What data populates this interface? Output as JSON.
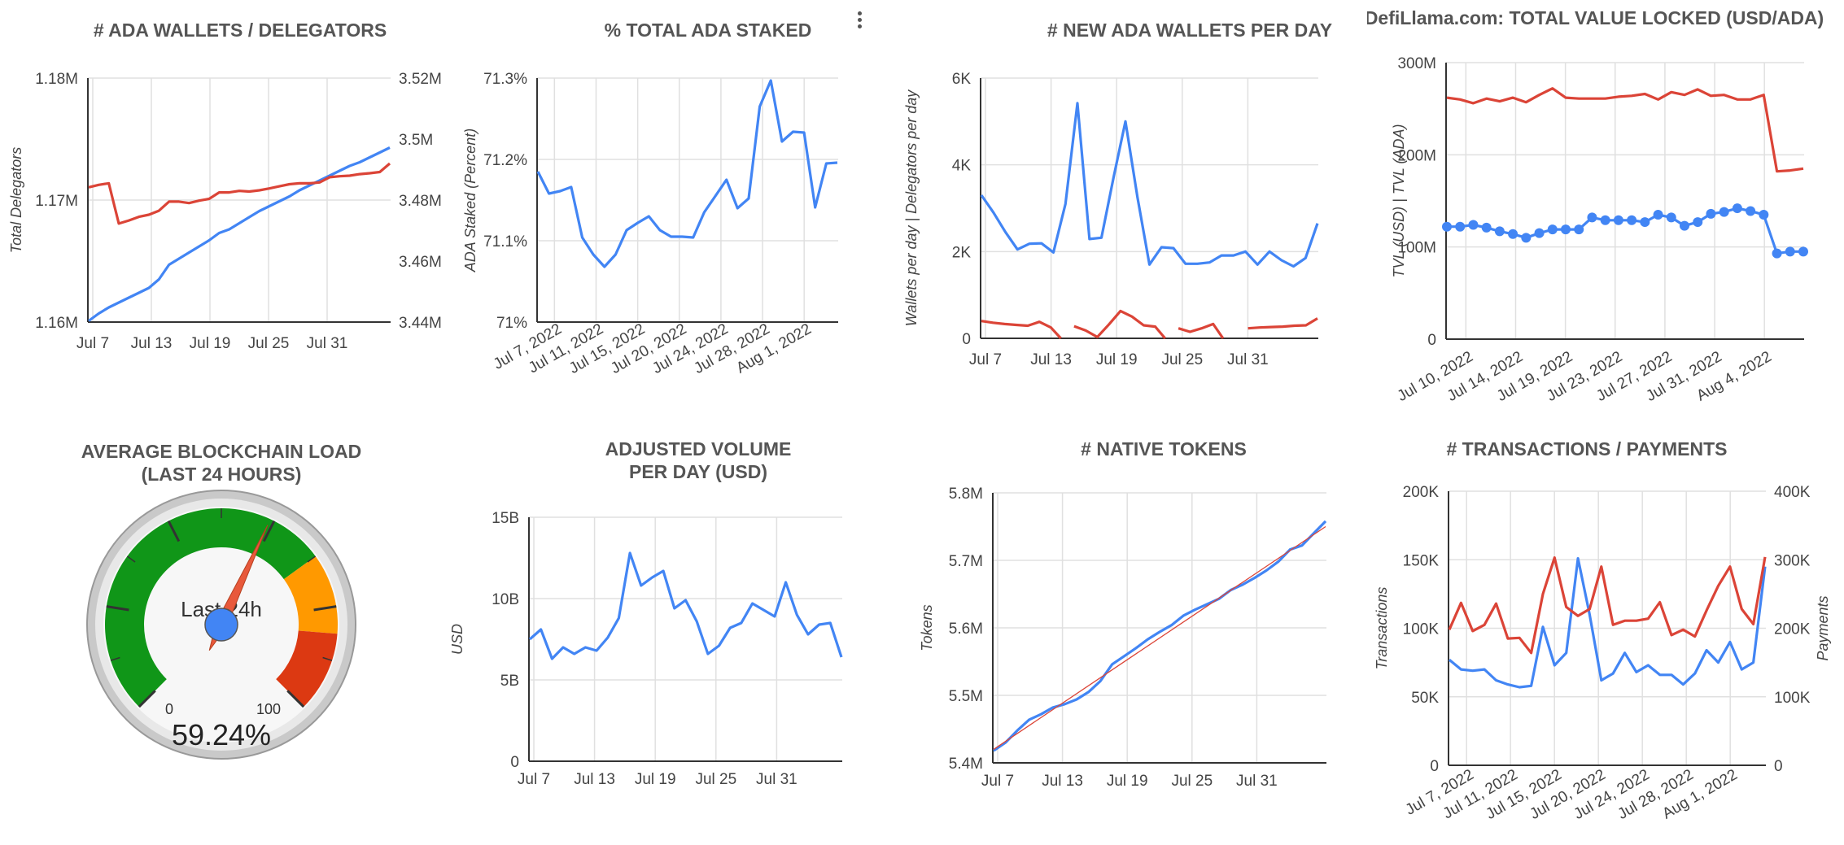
{
  "colors": {
    "blue": "#4285f4",
    "red": "#db4437",
    "text": "#444444",
    "grid": "#e0e0e0",
    "axis": "#333333"
  },
  "menu_icon": "more-vert-icon",
  "chart_data": [
    {
      "id": "c1",
      "type": "line",
      "title": "# ADA WALLETS / DELEGATORS",
      "ylabel": "Total Delegators",
      "ylabel_right": "",
      "x_ticks": [
        "Jul 7",
        "Jul 13",
        "Jul 19",
        "Jul 25",
        "Jul 31"
      ],
      "ylim": [
        1.16,
        1.18
      ],
      "y_ticks": [
        {
          "v": 1.16,
          "label": "1.16M"
        },
        {
          "v": 1.17,
          "label": "1.17M"
        },
        {
          "v": 1.18,
          "label": "1.18M"
        }
      ],
      "ylim_right": [
        3.44,
        3.52
      ],
      "y_ticks_right": [
        {
          "v": 3.44,
          "label": "3.44M"
        },
        {
          "v": 3.46,
          "label": "3.46M"
        },
        {
          "v": 3.48,
          "label": "3.48M"
        },
        {
          "v": 3.5,
          "label": "3.5M"
        },
        {
          "v": 3.52,
          "label": "3.52M"
        }
      ],
      "grid": true,
      "series": [
        {
          "color": "blue",
          "axis": "left",
          "values": [
            1.1601,
            1.1607,
            1.1612,
            1.1616,
            1.162,
            1.1624,
            1.1628,
            1.1635,
            1.1647,
            1.1652,
            1.1657,
            1.1662,
            1.1667,
            1.1673,
            1.1676,
            1.1681,
            1.1686,
            1.1691,
            1.1695,
            1.1699,
            1.1703,
            1.1708,
            1.1712,
            1.1716,
            1.172,
            1.1724,
            1.1728,
            1.1731,
            1.1735,
            1.1739,
            1.1743
          ]
        },
        {
          "color": "red",
          "axis": "right",
          "values": [
            3.4842,
            3.485,
            3.4855,
            3.4723,
            3.4733,
            3.4745,
            3.4752,
            3.4765,
            3.4795,
            3.4795,
            3.479,
            3.4798,
            3.4804,
            3.4825,
            3.4825,
            3.483,
            3.4828,
            3.4832,
            3.4838,
            3.4845,
            3.4852,
            3.4855,
            3.4855,
            3.4858,
            3.4875,
            3.4878,
            3.488,
            3.4885,
            3.4888,
            3.4892,
            3.492
          ]
        }
      ]
    },
    {
      "id": "c2",
      "type": "line",
      "title": "% TOTAL ADA STAKED",
      "ylabel": "ADA Staked (Percent)",
      "x_ticks": [
        "Jul 7, 2022",
        "Jul 11, 2022",
        "Jul 15, 2022",
        "Jul 20, 2022",
        "Jul 24, 2022",
        "Jul 28, 2022",
        "Aug 1, 2022"
      ],
      "ylim": [
        71.0,
        71.3
      ],
      "y_ticks": [
        {
          "v": 71.0,
          "label": "71%"
        },
        {
          "v": 71.1,
          "label": "71.1%"
        },
        {
          "v": 71.2,
          "label": "71.2%"
        },
        {
          "v": 71.3,
          "label": "71.3%"
        }
      ],
      "grid": true,
      "series": [
        {
          "color": "blue",
          "axis": "left",
          "values": [
            71.185,
            71.158,
            71.161,
            71.166,
            71.104,
            71.083,
            71.068,
            71.083,
            71.113,
            71.122,
            71.13,
            71.113,
            71.105,
            71.105,
            71.104,
            71.135,
            71.155,
            71.175,
            71.14,
            71.152,
            71.265,
            71.297,
            71.222,
            71.234,
            71.233,
            71.141,
            71.195,
            71.196
          ]
        }
      ]
    },
    {
      "id": "c3",
      "type": "line",
      "title": "# NEW ADA WALLETS PER DAY",
      "ylabel": "Wallets per day | Delegators per day",
      "x_ticks": [
        "Jul 7",
        "Jul 13",
        "Jul 19",
        "Jul 25",
        "Jul 31"
      ],
      "ylim": [
        0,
        6000
      ],
      "y_ticks": [
        {
          "v": 0,
          "label": "0"
        },
        {
          "v": 2000,
          "label": "2K"
        },
        {
          "v": 4000,
          "label": "4K"
        },
        {
          "v": 6000,
          "label": "6K"
        }
      ],
      "grid": true,
      "series": [
        {
          "color": "blue",
          "axis": "left",
          "values": [
            3300,
            2900,
            2450,
            2050,
            2180,
            2190,
            1980,
            3100,
            5420,
            2290,
            2320,
            3700,
            5000,
            3250,
            1700,
            2100,
            2080,
            1720,
            1720,
            1750,
            1910,
            1910,
            2000,
            1700,
            2000,
            1800,
            1660,
            1850,
            2650
          ]
        },
        {
          "color": "red",
          "axis": "left",
          "values": [
            400,
            360,
            330,
            310,
            290,
            380,
            250,
            -60,
            280,
            180,
            30,
            320,
            630,
            500,
            300,
            270,
            -60,
            230,
            150,
            230,
            330,
            -60,
            -60,
            230,
            250,
            260,
            270,
            290,
            300,
            460
          ]
        }
      ]
    },
    {
      "id": "c4",
      "type": "line",
      "title": "DefiLlama.com: TOTAL VALUE LOCKED (USD/ADA)",
      "ylabel": "TVL (USD) | TVL (ADA)",
      "x_ticks": [
        "Jul 10, 2022",
        "Jul 14, 2022",
        "Jul 19, 2022",
        "Jul 23, 2022",
        "Jul 27, 2022",
        "Jul 31, 2022",
        "Aug 4, 2022"
      ],
      "ylim": [
        0,
        300
      ],
      "y_ticks": [
        {
          "v": 0,
          "label": "0"
        },
        {
          "v": 100,
          "label": "100M"
        },
        {
          "v": 200,
          "label": "200M"
        },
        {
          "v": 300,
          "label": "300M"
        }
      ],
      "grid": true,
      "series": [
        {
          "color": "red",
          "axis": "left",
          "values": [
            262,
            260,
            256,
            261,
            258,
            262,
            257,
            265,
            272,
            262,
            261,
            261,
            261,
            263,
            264,
            266,
            260,
            268,
            265,
            271,
            264,
            265,
            260,
            260,
            265,
            182,
            183,
            185
          ]
        },
        {
          "color": "blue",
          "axis": "left",
          "markers": true,
          "values": [
            122,
            122,
            124,
            121,
            117,
            114,
            110,
            115,
            119,
            119,
            119,
            132,
            129,
            129,
            129,
            127,
            135,
            132,
            123,
            127,
            136,
            138,
            142,
            139,
            135,
            93,
            95,
            95
          ]
        }
      ]
    },
    {
      "id": "c6",
      "type": "line",
      "title": "ADJUSTED VOLUME",
      "title2": "PER DAY (USD)",
      "ylabel": "USD",
      "x_ticks": [
        "Jul 7",
        "Jul 13",
        "Jul 19",
        "Jul 25",
        "Jul 31"
      ],
      "ylim": [
        0,
        15
      ],
      "y_ticks": [
        {
          "v": 0,
          "label": "0"
        },
        {
          "v": 5,
          "label": "5B"
        },
        {
          "v": 10,
          "label": "10B"
        },
        {
          "v": 15,
          "label": "15B"
        }
      ],
      "grid": true,
      "series": [
        {
          "color": "blue",
          "axis": "left",
          "values": [
            7.5,
            8.1,
            6.3,
            7.0,
            6.6,
            7.0,
            6.8,
            7.6,
            8.8,
            12.8,
            10.8,
            11.3,
            11.7,
            9.4,
            9.9,
            8.6,
            6.6,
            7.1,
            8.2,
            8.5,
            9.7,
            9.3,
            8.9,
            11.0,
            9.0,
            7.8,
            8.4,
            8.5,
            6.4
          ]
        }
      ]
    },
    {
      "id": "c7",
      "type": "line",
      "title": "# NATIVE TOKENS",
      "ylabel": "Tokens",
      "x_ticks": [
        "Jul 7",
        "Jul 13",
        "Jul 19",
        "Jul 25",
        "Jul 31"
      ],
      "ylim": [
        5.4,
        5.8
      ],
      "y_ticks": [
        {
          "v": 5.4,
          "label": "5.4M"
        },
        {
          "v": 5.5,
          "label": "5.5M"
        },
        {
          "v": 5.6,
          "label": "5.6M"
        },
        {
          "v": 5.7,
          "label": "5.7M"
        },
        {
          "v": 5.8,
          "label": "5.8M"
        }
      ],
      "grid": true,
      "series": [
        {
          "color": "blue",
          "axis": "left",
          "values": [
            5.418,
            5.43,
            5.448,
            5.464,
            5.472,
            5.482,
            5.487,
            5.494,
            5.505,
            5.521,
            5.546,
            5.558,
            5.57,
            5.583,
            5.594,
            5.604,
            5.618,
            5.627,
            5.635,
            5.643,
            5.656,
            5.664,
            5.674,
            5.685,
            5.698,
            5.716,
            5.722,
            5.74,
            5.758
          ]
        },
        {
          "color": "red",
          "axis": "left",
          "trend": true,
          "values": [
            5.42,
            5.75
          ]
        }
      ]
    },
    {
      "id": "c8",
      "type": "line",
      "title": "# TRANSACTIONS / PAYMENTS",
      "ylabel": "Transactions",
      "ylabel_right": "Payments",
      "x_ticks": [
        "Jul 7, 2022",
        "Jul 11, 2022",
        "Jul 15, 2022",
        "Jul 20, 2022",
        "Jul 24, 2022",
        "Jul 28, 2022",
        "Aug 1, 2022"
      ],
      "ylim": [
        0,
        200
      ],
      "y_ticks": [
        {
          "v": 0,
          "label": "0"
        },
        {
          "v": 50,
          "label": "50K"
        },
        {
          "v": 100,
          "label": "100K"
        },
        {
          "v": 150,
          "label": "150K"
        },
        {
          "v": 200,
          "label": "200K"
        }
      ],
      "ylim_right": [
        0,
        400
      ],
      "y_ticks_right": [
        {
          "v": 0,
          "label": "0"
        },
        {
          "v": 100,
          "label": "100K"
        },
        {
          "v": 200,
          "label": "200K"
        },
        {
          "v": 300,
          "label": "300K"
        },
        {
          "v": 400,
          "label": "400K"
        }
      ],
      "grid": true,
      "series": [
        {
          "color": "blue",
          "axis": "left",
          "values": [
            77,
            70,
            69,
            70,
            62,
            59,
            57,
            58,
            101,
            73,
            82,
            151,
            110,
            62,
            67,
            82,
            68,
            73,
            66,
            66,
            59,
            67,
            84,
            75,
            90,
            70,
            75,
            145
          ]
        },
        {
          "color": "red",
          "axis": "right",
          "values": [
            198,
            237,
            196,
            205,
            236,
            185,
            186,
            164,
            250,
            303,
            231,
            218,
            228,
            290,
            205,
            211,
            211,
            214,
            238,
            190,
            198,
            188,
            226,
            262,
            290,
            228,
            206,
            304
          ]
        }
      ]
    }
  ],
  "gauge": {
    "title_line1": "AVERAGE BLOCKCHAIN LOAD",
    "title_line2": "(LAST 24 HOURS)",
    "label": "Last 24h",
    "min_label": "0",
    "max_label": "100",
    "value": 59.24,
    "value_label": "59.24%",
    "bands": [
      {
        "from": 0,
        "to": 70,
        "color": "#109618"
      },
      {
        "from": 70,
        "to": 85,
        "color": "#ff9900"
      },
      {
        "from": 85,
        "to": 100,
        "color": "#dc3912"
      }
    ]
  }
}
